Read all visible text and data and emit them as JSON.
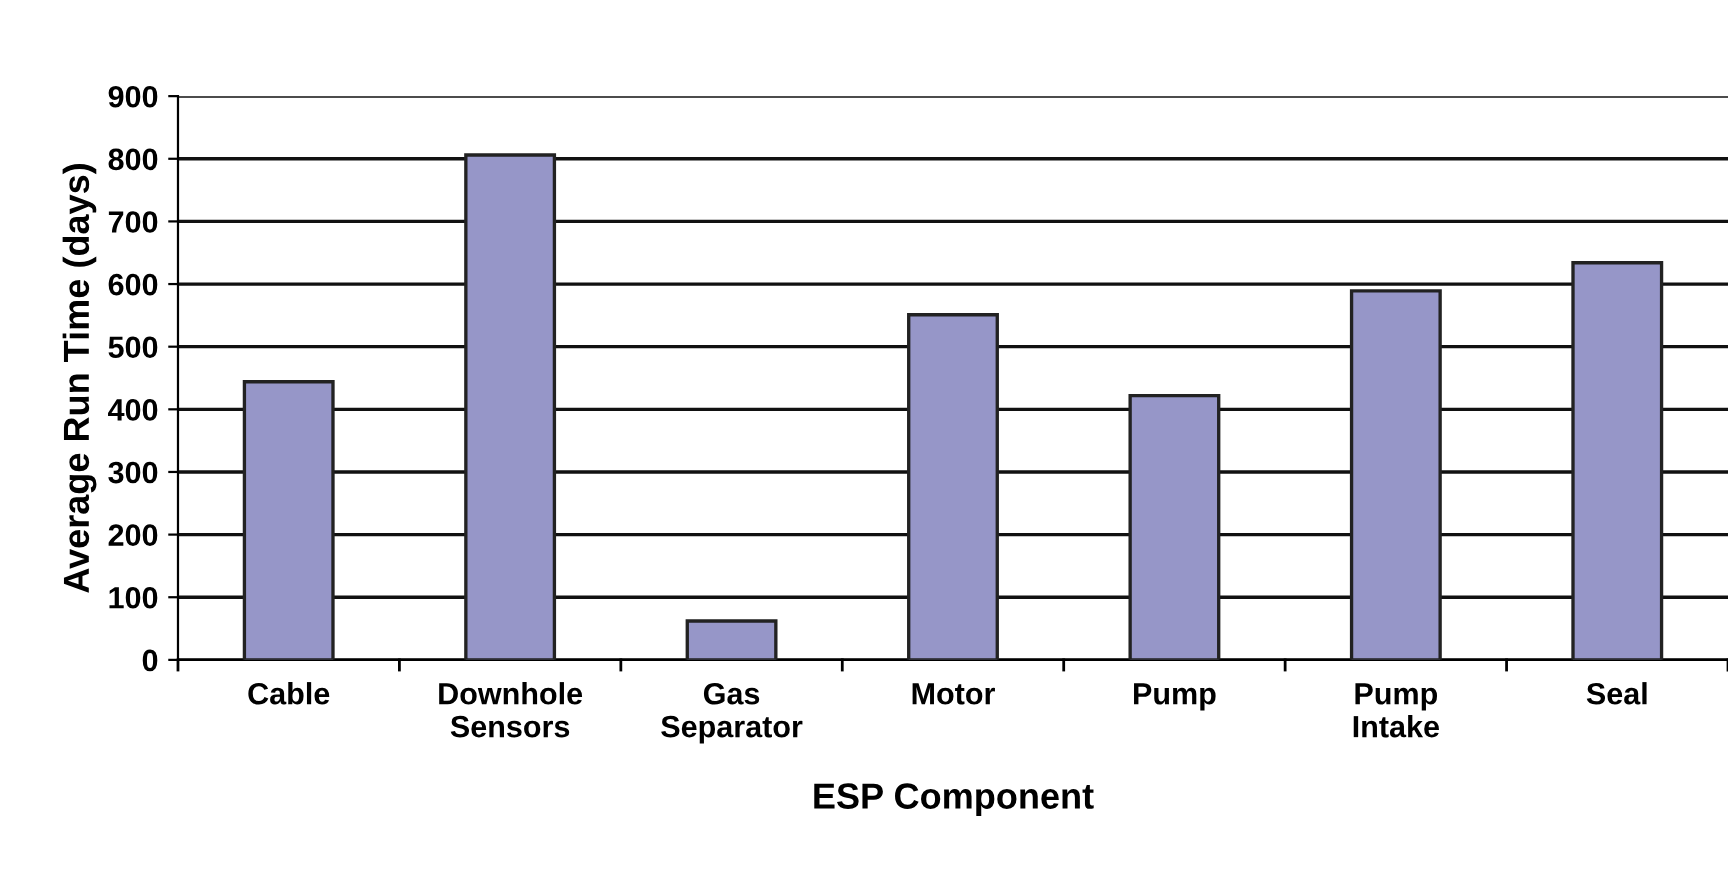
{
  "chart_data": {
    "type": "bar",
    "xlabel": "ESP Component",
    "ylabel": "Average Run Time (days)",
    "categories": [
      "Cable",
      "Downhole\nSensors",
      "Gas\nSeparator",
      "Motor",
      "Pump",
      "Pump\nIntake",
      "Seal"
    ],
    "values": [
      444,
      806,
      62,
      551,
      422,
      589,
      634
    ],
    "color": "#9696c8",
    "ylim": [
      0,
      900
    ],
    "yticks": [
      0,
      100,
      200,
      300,
      400,
      500,
      600,
      700,
      800,
      900
    ],
    "grid": "y"
  }
}
